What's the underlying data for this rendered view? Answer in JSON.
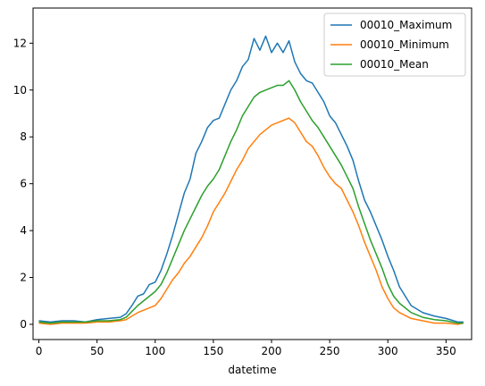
{
  "chart_data": {
    "type": "line",
    "title": "",
    "xlabel": "datetime",
    "ylabel": "",
    "xlim": [
      -5,
      372
    ],
    "ylim": [
      -0.65,
      13.5
    ],
    "xticks": [
      0,
      50,
      100,
      150,
      200,
      250,
      300,
      350
    ],
    "yticks": [
      0,
      2,
      4,
      6,
      8,
      10,
      12
    ],
    "legend_position": "top-right",
    "grid": false,
    "series": [
      {
        "name": "00010_Maximum",
        "color": "#1f77b4",
        "x": [
          0,
          10,
          20,
          30,
          40,
          50,
          60,
          70,
          75,
          80,
          85,
          90,
          95,
          100,
          105,
          110,
          115,
          120,
          125,
          130,
          135,
          140,
          145,
          150,
          155,
          160,
          165,
          170,
          175,
          180,
          185,
          190,
          195,
          200,
          205,
          210,
          215,
          220,
          225,
          230,
          235,
          240,
          245,
          250,
          255,
          260,
          265,
          270,
          275,
          280,
          285,
          290,
          295,
          300,
          305,
          310,
          320,
          330,
          340,
          350,
          360,
          365
        ],
        "y": [
          0.15,
          0.1,
          0.15,
          0.15,
          0.1,
          0.2,
          0.25,
          0.3,
          0.45,
          0.8,
          1.2,
          1.3,
          1.7,
          1.8,
          2.3,
          3.0,
          3.8,
          4.7,
          5.6,
          6.2,
          7.3,
          7.8,
          8.4,
          8.7,
          8.8,
          9.4,
          10.0,
          10.4,
          11.0,
          11.3,
          12.2,
          11.7,
          12.3,
          11.6,
          12.0,
          11.6,
          12.1,
          11.2,
          10.7,
          10.4,
          10.3,
          9.9,
          9.5,
          8.9,
          8.6,
          8.1,
          7.6,
          7.0,
          6.1,
          5.3,
          4.8,
          4.2,
          3.6,
          2.9,
          2.3,
          1.6,
          0.8,
          0.5,
          0.35,
          0.25,
          0.1,
          0.1
        ]
      },
      {
        "name": "00010_Minimum",
        "color": "#ff7f0e",
        "x": [
          0,
          10,
          20,
          30,
          40,
          50,
          60,
          70,
          75,
          80,
          85,
          90,
          95,
          100,
          105,
          110,
          115,
          120,
          125,
          130,
          135,
          140,
          145,
          150,
          155,
          160,
          165,
          170,
          175,
          180,
          185,
          190,
          195,
          200,
          205,
          210,
          215,
          220,
          225,
          230,
          235,
          240,
          245,
          250,
          255,
          260,
          265,
          270,
          275,
          280,
          285,
          290,
          295,
          300,
          305,
          310,
          320,
          330,
          340,
          350,
          360,
          365
        ],
        "y": [
          0.05,
          0.0,
          0.05,
          0.05,
          0.05,
          0.1,
          0.1,
          0.15,
          0.2,
          0.35,
          0.5,
          0.6,
          0.7,
          0.8,
          1.1,
          1.5,
          1.9,
          2.2,
          2.6,
          2.9,
          3.3,
          3.7,
          4.2,
          4.8,
          5.2,
          5.6,
          6.1,
          6.6,
          7.0,
          7.5,
          7.8,
          8.1,
          8.3,
          8.5,
          8.6,
          8.7,
          8.8,
          8.6,
          8.2,
          7.8,
          7.6,
          7.2,
          6.7,
          6.3,
          6.0,
          5.8,
          5.3,
          4.8,
          4.2,
          3.5,
          2.9,
          2.3,
          1.6,
          1.1,
          0.7,
          0.5,
          0.25,
          0.15,
          0.05,
          0.05,
          0.0,
          0.05
        ]
      },
      {
        "name": "00010_Mean",
        "color": "#2ca02c",
        "x": [
          0,
          10,
          20,
          30,
          40,
          50,
          60,
          70,
          75,
          80,
          85,
          90,
          95,
          100,
          105,
          110,
          115,
          120,
          125,
          130,
          135,
          140,
          145,
          150,
          155,
          160,
          165,
          170,
          175,
          180,
          185,
          190,
          195,
          200,
          205,
          210,
          215,
          220,
          225,
          230,
          235,
          240,
          245,
          250,
          255,
          260,
          265,
          270,
          275,
          280,
          285,
          290,
          295,
          300,
          305,
          310,
          320,
          330,
          340,
          350,
          360,
          365
        ],
        "y": [
          0.1,
          0.05,
          0.1,
          0.1,
          0.1,
          0.15,
          0.15,
          0.2,
          0.3,
          0.55,
          0.8,
          1.0,
          1.2,
          1.4,
          1.7,
          2.2,
          2.8,
          3.4,
          4.0,
          4.5,
          5.0,
          5.5,
          5.9,
          6.2,
          6.6,
          7.2,
          7.8,
          8.3,
          8.9,
          9.3,
          9.7,
          9.9,
          10.0,
          10.1,
          10.2,
          10.2,
          10.4,
          10.0,
          9.5,
          9.1,
          8.7,
          8.4,
          8.0,
          7.6,
          7.2,
          6.8,
          6.3,
          5.8,
          5.0,
          4.3,
          3.6,
          3.0,
          2.4,
          1.7,
          1.2,
          0.9,
          0.5,
          0.3,
          0.2,
          0.15,
          0.05,
          0.05
        ]
      }
    ]
  }
}
